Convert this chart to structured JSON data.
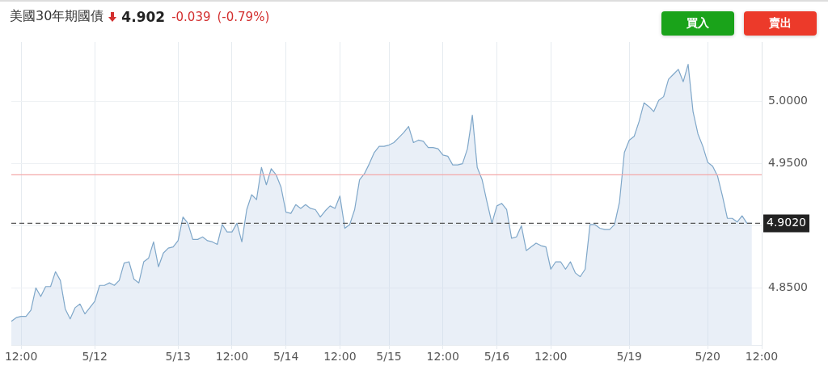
{
  "chart_data": {
    "type": "area",
    "title": "美國30年期國債",
    "annotations": [
      "4.902",
      "-0.039",
      "(-0.79%)",
      "買入",
      "賣出"
    ],
    "categories": [
      null,
      null,
      "12:00",
      null,
      null,
      null,
      null,
      null,
      null,
      null,
      null,
      null,
      null,
      null,
      null,
      null,
      null,
      "5/12",
      null,
      null,
      null,
      null,
      null,
      null,
      null,
      null,
      null,
      null,
      null,
      null,
      null,
      null,
      null,
      null,
      "5/13",
      null,
      null,
      null,
      null,
      null,
      null,
      null,
      null,
      null,
      null,
      "12:00",
      null,
      null,
      null,
      null,
      null,
      null,
      null,
      null,
      null,
      null,
      "5/14",
      null,
      null,
      null,
      null,
      null,
      null,
      null,
      null,
      null,
      null,
      "12:00",
      null,
      null,
      null,
      null,
      null,
      null,
      null,
      null,
      null,
      "5/15",
      null,
      null,
      null,
      null,
      null,
      null,
      null,
      null,
      null,
      null,
      "12:00",
      null,
      null,
      null,
      null,
      null,
      null,
      null,
      null,
      null,
      null,
      "5/16",
      null,
      null,
      null,
      null,
      null,
      null,
      null,
      null,
      null,
      null,
      "12:00",
      null,
      null,
      null,
      null,
      null,
      null,
      null,
      null,
      null,
      null,
      null,
      null,
      null,
      null,
      null,
      "5/19",
      null,
      null,
      null,
      null,
      null,
      null,
      null,
      null,
      null,
      null,
      null,
      null,
      null,
      null,
      null,
      "5/20",
      null,
      null,
      null,
      null,
      null,
      null,
      null,
      null,
      null,
      null,
      "12:00"
    ],
    "series": [
      {
        "color": "#7fa7c9",
        "values": [
          4.823,
          4.826,
          4.827,
          4.827,
          4.832,
          4.85,
          4.843,
          4.851,
          4.851,
          4.863,
          4.856,
          4.833,
          4.825,
          4.834,
          4.837,
          4.829,
          4.834,
          4.839,
          4.852,
          4.852,
          4.854,
          4.852,
          4.856,
          4.87,
          4.871,
          4.857,
          4.854,
          4.871,
          4.874,
          4.887,
          4.867,
          4.878,
          4.882,
          4.883,
          4.888,
          4.907,
          4.902,
          4.889,
          4.889,
          4.891,
          4.888,
          4.887,
          4.885,
          4.901,
          4.895,
          4.895,
          4.902,
          4.887,
          4.913,
          4.925,
          4.921,
          4.947,
          4.933,
          4.946,
          4.941,
          4.931,
          4.911,
          4.91,
          4.917,
          4.914,
          4.917,
          4.914,
          4.913,
          4.907,
          4.912,
          4.916,
          4.914,
          4.924,
          4.898,
          4.901,
          4.913,
          4.937,
          4.942,
          4.95,
          4.959,
          4.964,
          4.964,
          4.965,
          4.967,
          4.971,
          4.975,
          4.98,
          4.967,
          4.969,
          4.968,
          4.963,
          4.963,
          4.962,
          4.957,
          4.956,
          4.949,
          4.949,
          4.95,
          4.962,
          4.989,
          4.947,
          4.937,
          4.919,
          4.902,
          4.916,
          4.918,
          4.913,
          4.89,
          4.891,
          4.9,
          4.88,
          4.883,
          4.886,
          4.884,
          4.883,
          4.865,
          4.871,
          4.871,
          4.865,
          4.871,
          4.862,
          4.859,
          4.865,
          4.901,
          4.901,
          4.898,
          4.897,
          4.897,
          4.901,
          4.919,
          4.959,
          4.969,
          4.972,
          4.984,
          4.999,
          4.996,
          4.992,
          5.001,
          5.004,
          5.018,
          5.022,
          5.026,
          5.016,
          5.03,
          4.992,
          4.974,
          4.964,
          4.951,
          4.948,
          4.94,
          4.924,
          4.906,
          4.906,
          4.903,
          4.908,
          4.902,
          4.902,
          null,
          null
        ]
      }
    ],
    "ylim": [
      4.804,
      5.048
    ],
    "yticks": [
      {
        "value": 4.85,
        "label": "4.8500"
      },
      {
        "value": 4.9,
        "label": null
      },
      {
        "value": 4.95,
        "label": "4.9500"
      },
      {
        "value": 5.0,
        "label": "5.0000"
      }
    ],
    "grid": true,
    "marker": "none",
    "ref_lines": [
      {
        "axis": "y",
        "value": 4.902,
        "label": "4.9020",
        "line_style": "dashed",
        "color": "#555555"
      },
      {
        "axis": "y",
        "value": 4.941,
        "color": "#f4a9a9",
        "line_style": "solid"
      }
    ]
  }
}
